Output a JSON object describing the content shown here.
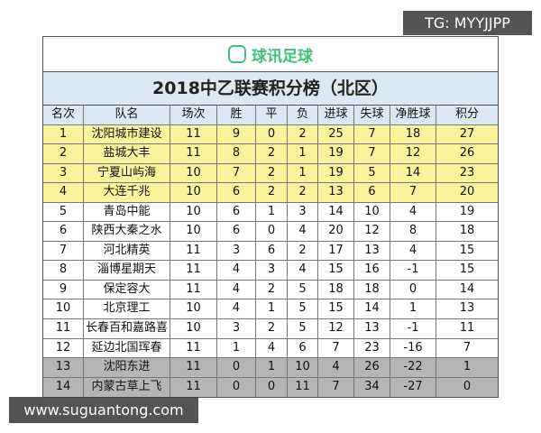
{
  "logo": "球讯足球",
  "title": "2018中乙联赛积分榜（北区）",
  "table": {
    "header": [
      "名次",
      "队名",
      "场次",
      "胜",
      "平",
      "负",
      "进球",
      "失球",
      "净胜球",
      "积分"
    ],
    "rows": [
      [
        1,
        "沈阳城市建设",
        11,
        9,
        0,
        2,
        25,
        7,
        18,
        27
      ],
      [
        2,
        "盐城大丰",
        11,
        8,
        2,
        1,
        19,
        7,
        12,
        26
      ],
      [
        3,
        "宁夏山屿海",
        10,
        7,
        2,
        1,
        19,
        5,
        14,
        23
      ],
      [
        4,
        "大连千兆",
        10,
        6,
        2,
        2,
        13,
        6,
        7,
        20
      ],
      [
        5,
        "青岛中能",
        10,
        6,
        1,
        3,
        14,
        10,
        4,
        19
      ],
      [
        6,
        "陕西大秦之水",
        10,
        6,
        0,
        4,
        20,
        12,
        8,
        18
      ],
      [
        7,
        "河北精英",
        11,
        3,
        6,
        2,
        17,
        13,
        4,
        15
      ],
      [
        8,
        "淄博星期天",
        11,
        4,
        3,
        4,
        15,
        16,
        -1,
        15
      ],
      [
        9,
        "保定容大",
        11,
        4,
        2,
        5,
        18,
        18,
        0,
        14
      ],
      [
        10,
        "北京理工",
        10,
        4,
        1,
        5,
        15,
        14,
        1,
        13
      ],
      [
        11,
        "长春百和嘉路喜",
        10,
        3,
        2,
        5,
        12,
        13,
        -1,
        11
      ],
      [
        12,
        "延边北国珲春",
        11,
        1,
        4,
        6,
        7,
        23,
        -16,
        7
      ],
      [
        13,
        "沈阳东进",
        11,
        0,
        1,
        10,
        4,
        26,
        -22,
        1
      ],
      [
        14,
        "内蒙古草上飞",
        11,
        0,
        0,
        11,
        7,
        34,
        -27,
        0
      ]
    ]
  },
  "watermark_top": "TG: MYYJJPP",
  "watermark_bottom": "www.suguantong.com"
}
